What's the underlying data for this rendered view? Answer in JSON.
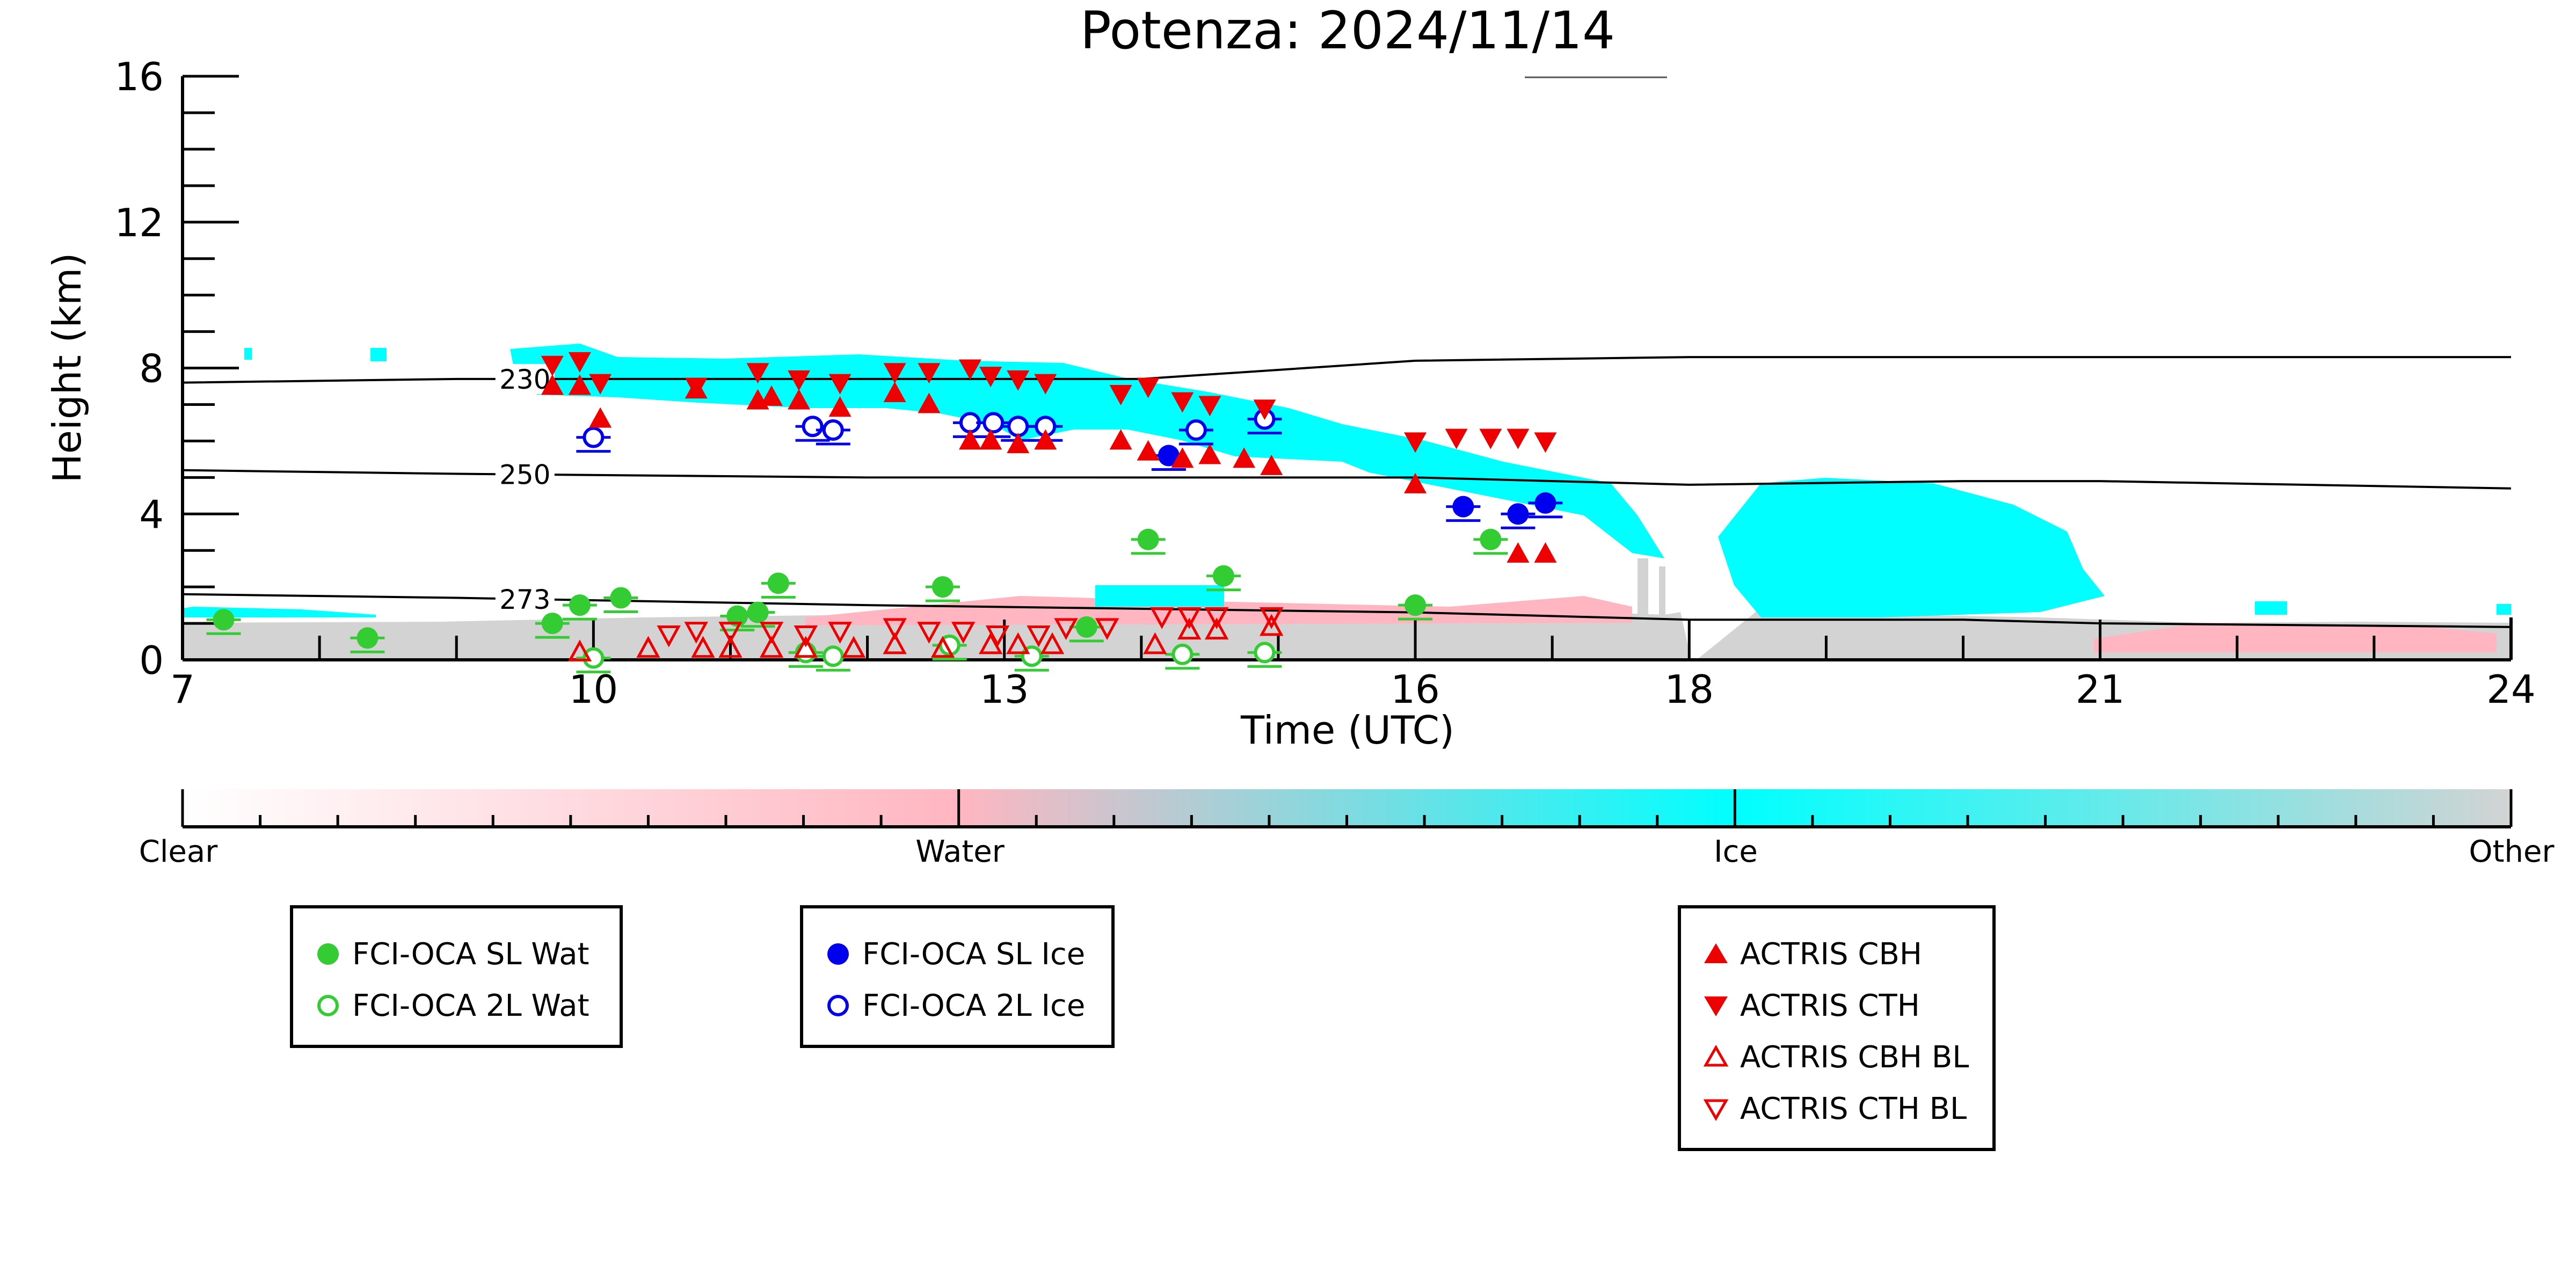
{
  "chart_data": {
    "type": "scatter",
    "title": "Potenza: 2024/11/14",
    "xlabel": "Time (UTC)",
    "ylabel": "Height (km)",
    "xlim": [
      7,
      24
    ],
    "ylim": [
      0,
      16
    ],
    "x_ticks": [
      7,
      10,
      13,
      16,
      18,
      21,
      24
    ],
    "y_ticks": [
      0,
      4,
      8,
      12,
      16
    ],
    "grid": false,
    "colorbar": {
      "labels": [
        "Clear",
        "Water",
        "Ice",
        "Other"
      ],
      "colors": [
        "#ffffff",
        "#ffb6c1",
        "#00ffff",
        "#d3d3d3"
      ]
    },
    "isotherms": [
      {
        "label": "230",
        "x": [
          7,
          9,
          12,
          14,
          16,
          18,
          21,
          24
        ],
        "y": [
          7.6,
          7.7,
          7.7,
          7.7,
          8.2,
          8.3,
          8.3,
          8.3
        ]
      },
      {
        "label": "250",
        "x": [
          7,
          9,
          12,
          14,
          16,
          18,
          20,
          21,
          24
        ],
        "y": [
          5.2,
          5.1,
          5.0,
          5.0,
          5.0,
          4.8,
          4.9,
          4.9,
          4.7
        ]
      },
      {
        "label": "273",
        "x": [
          7,
          9,
          12,
          14,
          16,
          18,
          20,
          21,
          24
        ],
        "y": [
          1.8,
          1.7,
          1.5,
          1.4,
          1.3,
          1.1,
          1.1,
          1.0,
          0.9
        ]
      }
    ],
    "series": [
      {
        "name": "FCI-OCA SL Wat",
        "color": "#33cc33",
        "marker": "circle-filled",
        "x": [
          7.3,
          8.35,
          9.7,
          9.9,
          10.2,
          11.05,
          11.2,
          11.35,
          12.55,
          13.6,
          14.05,
          14.6,
          16.0,
          16.55
        ],
        "y": [
          1.1,
          0.6,
          1.0,
          1.5,
          1.7,
          1.2,
          1.3,
          2.1,
          2.0,
          0.9,
          3.3,
          2.3,
          1.5,
          3.3
        ]
      },
      {
        "name": "FCI-OCA 2L Wat",
        "color": "#33cc33",
        "marker": "circle-open",
        "x": [
          10.0,
          11.55,
          11.75,
          12.6,
          13.2,
          14.3,
          14.9
        ],
        "y": [
          0.05,
          0.2,
          0.1,
          0.4,
          0.1,
          0.15,
          0.2
        ]
      },
      {
        "name": "FCI-OCA SL Ice",
        "color": "#0000ee",
        "marker": "circle-filled",
        "x": [
          14.2,
          16.35,
          16.75,
          16.95
        ],
        "y": [
          5.6,
          4.2,
          4.0,
          4.3
        ]
      },
      {
        "name": "FCI-OCA 2L Ice",
        "color": "#0000ee",
        "marker": "circle-open",
        "x": [
          10.0,
          11.6,
          11.75,
          12.75,
          12.92,
          13.1,
          13.3,
          14.4,
          14.9
        ],
        "y": [
          6.1,
          6.4,
          6.3,
          6.5,
          6.5,
          6.4,
          6.4,
          6.3,
          6.6
        ]
      },
      {
        "name": "ACTRIS CBH",
        "color": "#ee0000",
        "marker": "triangle-up-filled",
        "x": [
          9.7,
          9.9,
          10.05,
          10.75,
          11.2,
          11.3,
          11.5,
          11.8,
          12.2,
          12.45,
          12.75,
          12.9,
          13.1,
          13.3,
          13.85,
          14.05,
          14.3,
          14.5,
          14.75,
          14.95,
          16.0,
          16.75,
          16.95
        ],
        "y": [
          7.5,
          7.5,
          6.6,
          7.4,
          7.1,
          7.2,
          7.1,
          6.9,
          7.3,
          7.0,
          6.0,
          6.0,
          5.9,
          6.0,
          6.0,
          5.7,
          5.5,
          5.6,
          5.5,
          5.3,
          4.8,
          2.9,
          2.9
        ]
      },
      {
        "name": "ACTRIS CTH",
        "color": "#ee0000",
        "marker": "triangle-down-filled",
        "x": [
          9.7,
          9.9,
          10.05,
          10.75,
          11.2,
          11.5,
          11.8,
          12.2,
          12.45,
          12.75,
          12.9,
          13.1,
          13.3,
          13.85,
          14.05,
          14.3,
          14.5,
          14.9,
          16.0,
          16.3,
          16.55,
          16.75,
          16.95
        ],
        "y": [
          8.1,
          8.2,
          7.6,
          7.5,
          7.9,
          7.7,
          7.6,
          7.9,
          7.9,
          8.0,
          7.8,
          7.7,
          7.6,
          7.3,
          7.5,
          7.1,
          7.0,
          6.9,
          6.0,
          6.1,
          6.1,
          6.1,
          6.0
        ]
      },
      {
        "name": "ACTRIS CBH BL",
        "color": "#ee0000",
        "marker": "triangle-up-open",
        "x": [
          9.9,
          10.4,
          10.8,
          11.0,
          11.3,
          11.55,
          11.9,
          12.2,
          12.55,
          12.9,
          13.1,
          13.35,
          14.1,
          14.35,
          14.55,
          14.95
        ],
        "y": [
          0.2,
          0.3,
          0.3,
          0.3,
          0.3,
          0.3,
          0.3,
          0.4,
          0.3,
          0.4,
          0.4,
          0.4,
          0.4,
          0.8,
          0.8,
          0.9
        ]
      },
      {
        "name": "ACTRIS CTH BL",
        "color": "#ee0000",
        "marker": "triangle-down-open",
        "x": [
          10.55,
          10.75,
          11.0,
          11.3,
          11.55,
          11.8,
          12.2,
          12.45,
          12.7,
          12.95,
          13.25,
          13.45,
          13.75,
          14.15,
          14.35,
          14.55,
          14.95
        ],
        "y": [
          0.7,
          0.8,
          0.8,
          0.8,
          0.7,
          0.8,
          0.9,
          0.8,
          0.8,
          0.7,
          0.7,
          0.9,
          0.9,
          1.2,
          1.2,
          1.2,
          1.2
        ]
      }
    ]
  }
}
